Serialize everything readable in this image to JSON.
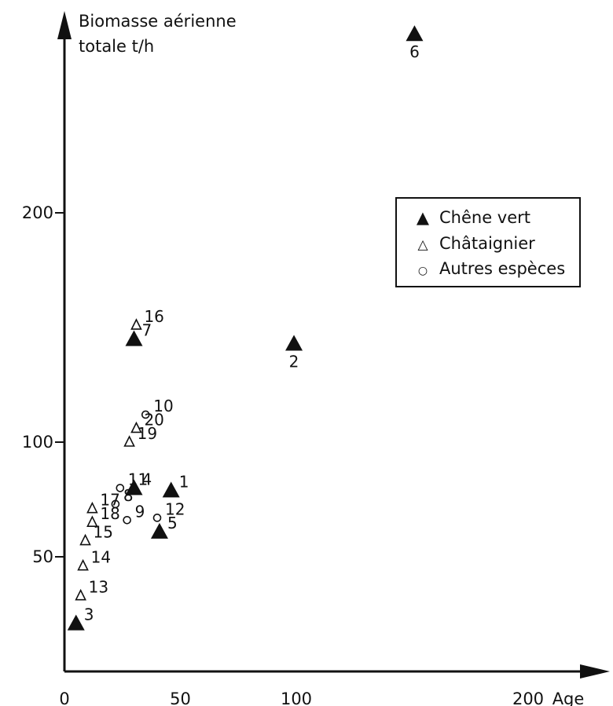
{
  "chart_data": {
    "type": "scatter",
    "title": "",
    "ylabel_line1": "Biomasse aérienne",
    "ylabel_line2": "totale t/h",
    "xlabel": "Age",
    "x_ticks": [
      0,
      50,
      100,
      200
    ],
    "y_ticks": [
      50,
      100,
      200
    ],
    "xlim": [
      0,
      235
    ],
    "ylim": [
      0,
      285
    ],
    "grid": false,
    "legend_position": "top-right",
    "series": [
      {
        "name": "Chêne vert",
        "marker": "filled-triangle",
        "points": [
          {
            "label": "1",
            "x": 46,
            "y": 79
          },
          {
            "label": "2",
            "x": 99,
            "y": 143
          },
          {
            "label": "3",
            "x": 5,
            "y": 21
          },
          {
            "label": "4",
            "x": 30,
            "y": 80
          },
          {
            "label": "5",
            "x": 41,
            "y": 61
          },
          {
            "label": "6",
            "x": 151,
            "y": 278
          },
          {
            "label": "7",
            "x": 30,
            "y": 145
          }
        ]
      },
      {
        "name": "Châtaignier",
        "marker": "open-triangle",
        "points": [
          {
            "label": "13",
            "x": 7,
            "y": 33
          },
          {
            "label": "14",
            "x": 8,
            "y": 46
          },
          {
            "label": "15",
            "x": 9,
            "y": 57
          },
          {
            "label": "16",
            "x": 31,
            "y": 151
          },
          {
            "label": "17",
            "x": 12,
            "y": 71
          },
          {
            "label": "18",
            "x": 12,
            "y": 65
          },
          {
            "label": "19",
            "x": 28,
            "y": 100
          },
          {
            "label": "20",
            "x": 31,
            "y": 106
          }
        ]
      },
      {
        "name": "Autres espèces",
        "marker": "open-circle",
        "points": [
          {
            "label": "8",
            "x": 22,
            "y": 73
          },
          {
            "label": "9",
            "x": 27,
            "y": 66
          },
          {
            "label": "10",
            "x": 35,
            "y": 112
          },
          {
            "label": "11",
            "x": 24,
            "y": 80
          },
          {
            "label": "12",
            "x": 40,
            "y": 67
          }
        ]
      }
    ]
  }
}
